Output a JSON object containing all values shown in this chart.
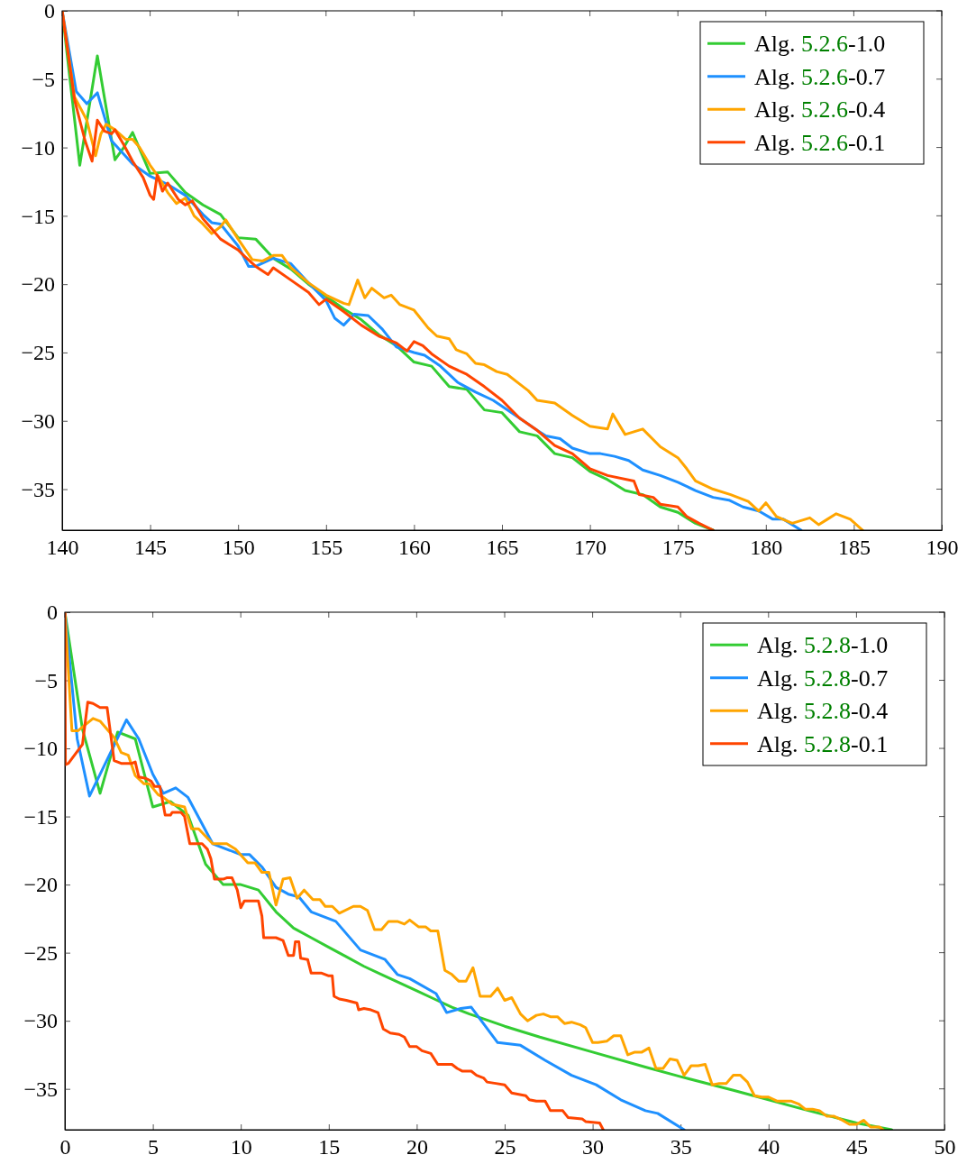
{
  "chart_data": [
    {
      "type": "line",
      "xlim": [
        140,
        190
      ],
      "ylim": [
        -38,
        0
      ],
      "xticks": [
        140,
        145,
        150,
        155,
        160,
        165,
        170,
        175,
        180,
        185,
        190
      ],
      "yticks": [
        {
          "value": 0,
          "label": "0"
        },
        {
          "value": -5,
          "label": "−5"
        },
        {
          "value": -10,
          "label": "−10"
        },
        {
          "value": -15,
          "label": "−15"
        },
        {
          "value": -20,
          "label": "−20"
        },
        {
          "value": -25,
          "label": "−25"
        },
        {
          "value": -30,
          "label": "−30"
        },
        {
          "value": -35,
          "label": "−35"
        }
      ],
      "legend": "top right",
      "grid": false,
      "marker": "none",
      "line_style": "solid",
      "series": [
        {
          "name": "Alg. 5.2.6-1.0",
          "color": "#33cc33",
          "x": [
            140,
            141,
            142,
            143,
            143.5,
            144,
            145,
            146,
            147,
            148,
            149,
            150,
            151,
            152,
            153,
            154,
            155,
            156,
            157,
            158,
            159,
            160,
            161,
            162,
            163,
            164,
            165,
            166,
            167,
            168,
            169,
            170,
            171,
            172,
            173,
            174,
            175,
            176,
            177
          ],
          "values": [
            0,
            -11.3,
            -3.3,
            -10.9,
            -10,
            -8.9,
            -11.9,
            -11.8,
            -13.3,
            -14.2,
            -14.9,
            -16.6,
            -16.7,
            -18.1,
            -18.9,
            -20,
            -20.9,
            -21.8,
            -22.6,
            -23.7,
            -24.5,
            -25.7,
            -26,
            -27.5,
            -27.7,
            -29.2,
            -29.4,
            -30.8,
            -31.1,
            -32.4,
            -32.7,
            -33.7,
            -34.3,
            -35.1,
            -35.4,
            -36.3,
            -36.7,
            -37.5,
            -38
          ]
        },
        {
          "name": "Alg. 5.2.6-0.7",
          "color": "#1e90ff",
          "x": [
            140,
            140.8,
            141.4,
            142,
            142.8,
            144,
            145,
            146,
            147,
            148,
            148.5,
            149,
            150,
            150.6,
            151,
            152,
            153,
            154,
            155,
            155.5,
            156,
            156.6,
            157.4,
            158.2,
            159,
            160,
            160.6,
            161.5,
            162.5,
            163.5,
            164.5,
            166,
            167,
            167.5,
            168.3,
            169,
            170,
            170.6,
            171.4,
            172.2,
            173,
            174,
            175,
            176,
            177,
            177.9,
            178.7,
            179.6,
            180.4,
            181,
            182
          ],
          "values": [
            0,
            -5.9,
            -6.8,
            -6,
            -9.5,
            -11.2,
            -12.1,
            -12.7,
            -13.5,
            -14.9,
            -15.5,
            -15.6,
            -17.2,
            -18.7,
            -18.7,
            -18.1,
            -18.5,
            -19.9,
            -21.2,
            -22.5,
            -23,
            -22.2,
            -22.3,
            -23.3,
            -24.6,
            -25,
            -25.2,
            -26,
            -27.2,
            -27.9,
            -28.5,
            -29.8,
            -30.7,
            -31.1,
            -31.3,
            -32,
            -32.4,
            -32.4,
            -32.6,
            -32.9,
            -33.6,
            -34,
            -34.5,
            -35.1,
            -35.6,
            -35.8,
            -36.3,
            -36.6,
            -37.2,
            -37.2,
            -38
          ]
        },
        {
          "name": "Alg. 5.2.6-0.4",
          "color": "#ffa500",
          "x": [
            140,
            140.7,
            141.4,
            141.9,
            142.2,
            142.5,
            143,
            143.6,
            144,
            144.4,
            145,
            145.5,
            146,
            146.5,
            147,
            147.5,
            148,
            148.5,
            149,
            149.3,
            150,
            150.8,
            151.4,
            152,
            152.5,
            153,
            154,
            155,
            156,
            156.3,
            156.8,
            157.2,
            157.6,
            158.3,
            158.7,
            159.2,
            160,
            160.8,
            161.3,
            162,
            162.4,
            163,
            163.5,
            164,
            164.7,
            165.3,
            166,
            166.5,
            167,
            168,
            169,
            170,
            171,
            171.3,
            172,
            173,
            174,
            175,
            175.5,
            176,
            177,
            178,
            179,
            179.6,
            180,
            180.6,
            181.5,
            182.5,
            183,
            183.5,
            184,
            184.8,
            185.5
          ],
          "values": [
            0,
            -6.3,
            -8,
            -10.6,
            -9,
            -8.3,
            -8.7,
            -9.4,
            -9.4,
            -10,
            -11.3,
            -12.2,
            -13.3,
            -14.1,
            -13.7,
            -15,
            -15.6,
            -16.3,
            -15.8,
            -15.3,
            -16.7,
            -18.2,
            -18.3,
            -17.9,
            -17.9,
            -18.8,
            -19.9,
            -20.8,
            -21.4,
            -21.5,
            -19.7,
            -21,
            -20.3,
            -21,
            -20.8,
            -21.5,
            -21.9,
            -23.2,
            -23.8,
            -24,
            -24.8,
            -25.1,
            -25.8,
            -25.9,
            -26.4,
            -26.6,
            -27.3,
            -27.8,
            -28.5,
            -28.7,
            -29.6,
            -30.4,
            -30.6,
            -29.5,
            -31,
            -30.6,
            -31.9,
            -32.7,
            -33.5,
            -34.4,
            -35,
            -35.4,
            -35.9,
            -36.6,
            -36,
            -37,
            -37.5,
            -37.1,
            -37.6,
            -37.2,
            -36.8,
            -37.2,
            -38
          ]
        },
        {
          "name": "Alg. 5.2.6-0.1",
          "color": "#ff4500",
          "x": [
            140,
            140.7,
            141.3,
            141.7,
            142,
            142.4,
            142.8,
            143,
            143.5,
            144,
            144.6,
            145,
            145.2,
            145.4,
            145.7,
            146,
            146.6,
            147,
            147.4,
            148,
            149,
            150,
            150.4,
            151,
            151.7,
            152,
            153,
            154,
            154.6,
            155,
            156,
            157,
            158,
            159,
            159.6,
            160,
            160.5,
            161,
            162,
            163,
            164,
            165,
            166,
            167,
            168,
            169,
            170,
            171,
            172.5,
            172.8,
            173.6,
            174,
            175,
            175.5,
            176.2,
            177
          ],
          "values": [
            0,
            -6.5,
            -9.5,
            -11,
            -8,
            -8.8,
            -9,
            -8.7,
            -9.8,
            -11,
            -12.2,
            -13.5,
            -13.8,
            -12,
            -13.2,
            -12.6,
            -13.8,
            -14.2,
            -13.9,
            -15.2,
            -16.7,
            -17.5,
            -18,
            -18.7,
            -19.3,
            -18.8,
            -19.7,
            -20.6,
            -21.5,
            -21.1,
            -22,
            -23,
            -23.8,
            -24.3,
            -24.9,
            -24.2,
            -24.5,
            -25.1,
            -26,
            -26.6,
            -27.5,
            -28.5,
            -29.8,
            -30.7,
            -31.8,
            -32.4,
            -33.5,
            -34,
            -34.4,
            -35.4,
            -35.6,
            -36.1,
            -36.3,
            -37,
            -37.5,
            -38
          ]
        }
      ]
    },
    {
      "type": "line",
      "xlim": [
        0,
        50
      ],
      "ylim": [
        -38,
        0
      ],
      "xticks": [
        0,
        5,
        10,
        15,
        20,
        25,
        30,
        35,
        40,
        45,
        50
      ],
      "yticks": [
        {
          "value": 0,
          "label": "0"
        },
        {
          "value": -5,
          "label": "−5"
        },
        {
          "value": -10,
          "label": "−10"
        },
        {
          "value": -15,
          "label": "−15"
        },
        {
          "value": -20,
          "label": "−20"
        },
        {
          "value": -25,
          "label": "−25"
        },
        {
          "value": -30,
          "label": "−30"
        },
        {
          "value": -35,
          "label": "−35"
        }
      ],
      "legend": "top right",
      "grid": false,
      "marker": "none",
      "line_style": "solid",
      "series": [
        {
          "name": "Alg. 5.2.8-1.0",
          "color": "#33cc33",
          "x": [
            0,
            1,
            2,
            3,
            4,
            5,
            6,
            7,
            8,
            9,
            10,
            11,
            12,
            13,
            14,
            15,
            16,
            17,
            18,
            19,
            20,
            21,
            22,
            23,
            25,
            27,
            30,
            33,
            35,
            38,
            40,
            42,
            45,
            47
          ],
          "values": [
            0,
            -8.6,
            -13.3,
            -8.8,
            -9.3,
            -14.3,
            -13.9,
            -14.9,
            -18.5,
            -20,
            -20,
            -20.4,
            -22,
            -23.2,
            -23.9,
            -24.6,
            -25.3,
            -26,
            -26.6,
            -27.2,
            -27.8,
            -28.4,
            -29,
            -29.5,
            -30.4,
            -31.2,
            -32.3,
            -33.4,
            -34.1,
            -35.1,
            -35.8,
            -36.5,
            -37.5,
            -38
          ]
        },
        {
          "name": "Alg. 5.2.8-0.7",
          "color": "#1e90ff",
          "x": [
            0,
            0.7,
            1.4,
            3.5,
            4.2,
            5,
            5.6,
            6.3,
            7,
            8.4,
            10,
            10.5,
            11.2,
            12,
            12.7,
            13.3,
            14,
            15.4,
            16.8,
            18.2,
            18.9,
            19.6,
            21.1,
            21.7,
            22.5,
            23.1,
            24.6,
            25.9,
            27.3,
            28.8,
            30.2,
            31.6,
            33,
            33.7,
            35.2
          ],
          "values": [
            0,
            -9.3,
            -13.5,
            -7.9,
            -9.3,
            -11.9,
            -13.3,
            -12.9,
            -13.6,
            -17,
            -17.8,
            -17.8,
            -18.7,
            -20.2,
            -20.7,
            -20.9,
            -22,
            -22.7,
            -24.8,
            -25.5,
            -26.6,
            -26.9,
            -28,
            -29.4,
            -29.1,
            -29,
            -31.6,
            -31.8,
            -32.9,
            -34,
            -34.7,
            -35.8,
            -36.6,
            -36.8,
            -38
          ]
        },
        {
          "name": "Alg. 5.2.8-0.4",
          "color": "#ffa500",
          "x": [
            0,
            0.4,
            0.75,
            1.6,
            2,
            2.8,
            3.2,
            3.6,
            4,
            4.5,
            4.8,
            5.3,
            5.6,
            6.1,
            6.8,
            7.2,
            7.6,
            8.4,
            9.2,
            9.7,
            10.4,
            10.8,
            11.2,
            11.6,
            12,
            12.4,
            12.8,
            13.2,
            13.6,
            14.1,
            14.5,
            14.8,
            15.2,
            15.6,
            16.4,
            16.8,
            17.2,
            17.6,
            18,
            18.4,
            18.9,
            19.3,
            19.6,
            20.1,
            20.5,
            20.8,
            21.2,
            21.6,
            22,
            22.4,
            22.8,
            23.2,
            23.6,
            24.2,
            24.6,
            25,
            25.4,
            25.9,
            26.3,
            26.8,
            27.2,
            27.6,
            28,
            28.4,
            28.8,
            29.3,
            29.6,
            30,
            30.3,
            30.8,
            31.2,
            31.6,
            32,
            32.4,
            32.8,
            33.2,
            33.6,
            34,
            34.4,
            34.8,
            35.2,
            35.6,
            36,
            36.4,
            36.8,
            37.2,
            37.6,
            38,
            38.4,
            38.8,
            39.2,
            39.6,
            40,
            40.5,
            41.3,
            41.7,
            42.1,
            42.5,
            42.9,
            43.3,
            43.7,
            44.2,
            44.6,
            45,
            45.4,
            45.8,
            46.3,
            46.5
          ],
          "values": [
            0,
            -8.7,
            -8.7,
            -7.8,
            -8,
            -9.2,
            -10.3,
            -10.5,
            -12,
            -12.6,
            -12.6,
            -13.4,
            -13.6,
            -14.1,
            -14.3,
            -15.9,
            -15.9,
            -17,
            -17,
            -17.4,
            -18.4,
            -18.4,
            -19.1,
            -19.1,
            -21.5,
            -19.6,
            -19.5,
            -21,
            -20.4,
            -21.1,
            -21.1,
            -21.6,
            -21.6,
            -22.1,
            -21.6,
            -21.6,
            -21.9,
            -23.3,
            -23.3,
            -22.7,
            -22.7,
            -22.9,
            -22.6,
            -23.1,
            -23.1,
            -23.4,
            -23.4,
            -26.3,
            -26.6,
            -27.1,
            -27.1,
            -26.1,
            -28.2,
            -28.2,
            -27.6,
            -28.5,
            -28.3,
            -29.5,
            -30,
            -29.6,
            -29.5,
            -29.7,
            -29.7,
            -30.2,
            -30.1,
            -30.3,
            -30.5,
            -31.6,
            -31.6,
            -31.5,
            -31.1,
            -31.1,
            -32.5,
            -32.3,
            -32.3,
            -32,
            -33.5,
            -33.5,
            -32.8,
            -32.9,
            -34,
            -33.3,
            -33.3,
            -33.2,
            -34.7,
            -34.6,
            -34.6,
            -34,
            -34,
            -34.5,
            -35.5,
            -35.6,
            -35.6,
            -35.9,
            -35.9,
            -36.1,
            -36.5,
            -36.5,
            -36.6,
            -37,
            -37,
            -37.3,
            -37.6,
            -37.6,
            -37.3,
            -37.8,
            -37.8,
            -38
          ]
        },
        {
          "name": "Alg. 5.2.8-0.1",
          "color": "#ff4500",
          "x": [
            0,
            0.03,
            0.2,
            0.6,
            1,
            1.3,
            1.6,
            2,
            2.4,
            2.8,
            3.2,
            3.8,
            4,
            4.2,
            4.6,
            4.9,
            5.1,
            5.4,
            5.7,
            6,
            6.1,
            6.6,
            6.8,
            7.1,
            7.8,
            8.1,
            8.3,
            8.5,
            9,
            9.2,
            9.5,
            9.8,
            10,
            10.2,
            11,
            11.2,
            11.3,
            12,
            12.4,
            12.7,
            13,
            13.1,
            13.3,
            13.4,
            13.8,
            14,
            14.6,
            15,
            15.2,
            15.3,
            15.6,
            16,
            16.6,
            16.7,
            17,
            17.4,
            17.8,
            18.1,
            18.5,
            19,
            19.3,
            19.6,
            20,
            20.3,
            20.8,
            21.2,
            22,
            22.3,
            22.6,
            23.1,
            23.4,
            23.8,
            24,
            24.5,
            25,
            25.4,
            25.8,
            26.2,
            26.4,
            26.8,
            27.3,
            27.6,
            28.3,
            28.6,
            29.4,
            29.6,
            30.4,
            30.6
          ],
          "values": [
            0,
            -11.2,
            -11.1,
            -10.4,
            -9.7,
            -6.6,
            -6.7,
            -7,
            -7,
            -10.9,
            -11.1,
            -11.1,
            -11,
            -12.1,
            -12.2,
            -12.4,
            -12.8,
            -12.8,
            -14.9,
            -14.9,
            -14.7,
            -14.7,
            -15,
            -17,
            -17,
            -17.4,
            -18.1,
            -19.6,
            -19.6,
            -19.5,
            -19.5,
            -20.4,
            -21.7,
            -21.2,
            -21.2,
            -22.3,
            -23.9,
            -23.9,
            -24.1,
            -25.2,
            -25.2,
            -24.2,
            -24.2,
            -25.4,
            -25.5,
            -26.5,
            -26.5,
            -26.7,
            -26.7,
            -28.2,
            -28.4,
            -28.5,
            -28.7,
            -29.2,
            -29.1,
            -29.2,
            -29.4,
            -30.6,
            -30.9,
            -31,
            -31.2,
            -31.9,
            -31.9,
            -32.2,
            -32.4,
            -33.2,
            -33.2,
            -33.5,
            -33.7,
            -33.7,
            -34,
            -34.2,
            -34.5,
            -34.6,
            -34.7,
            -35.3,
            -35.4,
            -35.5,
            -35.8,
            -35.9,
            -35.9,
            -36.6,
            -36.6,
            -37.1,
            -37.2,
            -37.4,
            -37.5,
            -38
          ]
        }
      ]
    }
  ]
}
